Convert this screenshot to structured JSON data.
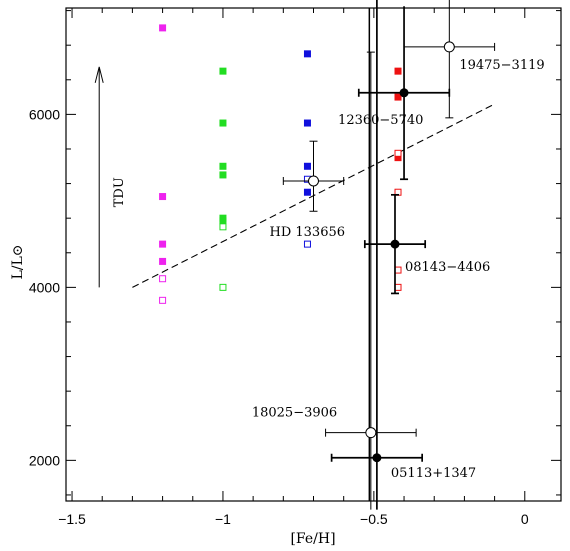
{
  "chart_data": {
    "type": "scatter",
    "xlabel": "[Fe/H]",
    "ylabel": "L/L⊙",
    "xlim": [
      -1.52,
      0.12
    ],
    "ylim": [
      1530,
      7230
    ],
    "xticks": [
      -1.5,
      -1,
      -0.5,
      0
    ],
    "xtick_labels": [
      "−1.5",
      "−1",
      "−0.5",
      "0"
    ],
    "yticks": [
      2000,
      4000,
      6000
    ],
    "ytick_labels": [
      "2000",
      "4000",
      "6000"
    ],
    "colors": {
      "magenta": "#ee22ee",
      "green": "#22dd22",
      "blue": "#1010dd",
      "red": "#ee1111",
      "black": "#000000"
    },
    "square_series": [
      {
        "color": "magenta",
        "filled": true,
        "x": -1.2,
        "y": [
          7000,
          5050,
          4500,
          4300
        ]
      },
      {
        "color": "magenta",
        "filled": false,
        "x": -1.2,
        "y": [
          4100,
          3850
        ]
      },
      {
        "color": "green",
        "filled": true,
        "x": -1.0,
        "y": [
          6500,
          5900,
          5400,
          5300,
          4800,
          4770
        ]
      },
      {
        "color": "green",
        "filled": false,
        "x": -1.0,
        "y": [
          4700,
          4000
        ]
      },
      {
        "color": "blue",
        "filled": true,
        "x": -0.72,
        "y": [
          6700,
          5900,
          5400,
          5100
        ]
      },
      {
        "color": "blue",
        "filled": false,
        "x": -0.72,
        "y": [
          5250,
          4500
        ]
      },
      {
        "color": "red",
        "filled": true,
        "x": -0.42,
        "y": [
          6500,
          6200,
          5500
        ]
      },
      {
        "color": "red",
        "filled": false,
        "x": -0.42,
        "y": [
          5550,
          5100,
          4200,
          4000
        ]
      }
    ],
    "stars": [
      {
        "label": "19475−3119",
        "x": -0.25,
        "y": 6780,
        "filled": false,
        "xerr": 0.15,
        "yerr_lo": 820,
        "yerr_hi": 820
      },
      {
        "label": "12360−5740",
        "x": -0.4,
        "y": 6250,
        "filled": true,
        "xerr": 0.15,
        "yerr_lo": 1000,
        "yerr_hi": 1000
      },
      {
        "label": "HD 133656",
        "x": -0.7,
        "y": 5230,
        "filled": false,
        "xerr": 0.1,
        "yerr_lo": 350,
        "yerr_hi": 460
      },
      {
        "label": "08143−4406",
        "x": -0.43,
        "y": 4500,
        "filled": true,
        "xerr": 0.1,
        "yerr_lo": 570,
        "yerr_hi": 570
      },
      {
        "label": "18025−3906",
        "x": -0.51,
        "y": 2320,
        "filled": false,
        "xerr": 0.15,
        "yerr_lo": 900,
        "yerr_hi": 4400
      },
      {
        "label": "05113+1347",
        "x": -0.49,
        "y": 2030,
        "filled": true,
        "xerr": 0.15,
        "yerr_lo": 900,
        "yerr_hi": 5500
      }
    ],
    "vertical_lines": [
      {
        "x": -0.515,
        "y_from": 1530,
        "y_to": 7230
      }
    ],
    "dashed_line": {
      "x": [
        -1.3,
        -0.1
      ],
      "y": [
        4000,
        6120
      ]
    },
    "arrow": {
      "label": "TDU",
      "x": -1.41,
      "y_from": 4000,
      "y_to": 6550
    }
  }
}
